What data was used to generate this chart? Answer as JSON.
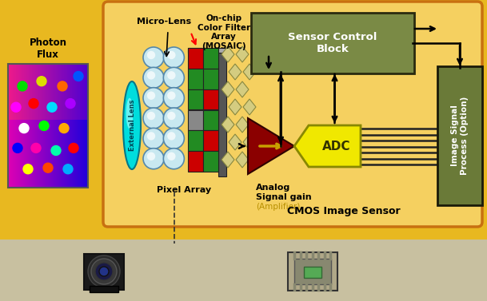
{
  "bg_outer": "#e8b820",
  "bg_inner": "#f5d060",
  "sensor_box_bg": "#7a8a45",
  "sensor_box_border": "#3a3a1a",
  "isp_box_bg": "#6a7a38",
  "isp_box_border": "#2a2a10",
  "adc_color": "#f0e800",
  "adc_border": "#888800",
  "amp_color": "#8b0000",
  "amp_border": "#400000",
  "lens_color": "#00dddd",
  "lens_border": "#007788",
  "arrow_color": "#000000",
  "text_color_black": "#000000",
  "text_color_white": "#ffffff",
  "text_color_gold": "#b89000",
  "photon_label": "Photon\nFlux",
  "microlens_label": "Micro-Lens",
  "extlens_label": "External Lens",
  "onchip_label": "On-chip\nColor Filter\nArray\n(MOSAIC)",
  "pixel_label": "Pixel Array",
  "amp_label1": "Analog",
  "amp_label2": "Signal gain",
  "amp_label3": "(Amplifier)",
  "adc_label": "ADC",
  "sensor_ctrl_label": "Sensor Control\nBlock",
  "isp_label": "Image Signal\nProcess (Option)",
  "cmos_label": "CMOS Image Sensor",
  "figsize": [
    6.09,
    3.77
  ],
  "dpi": 100
}
